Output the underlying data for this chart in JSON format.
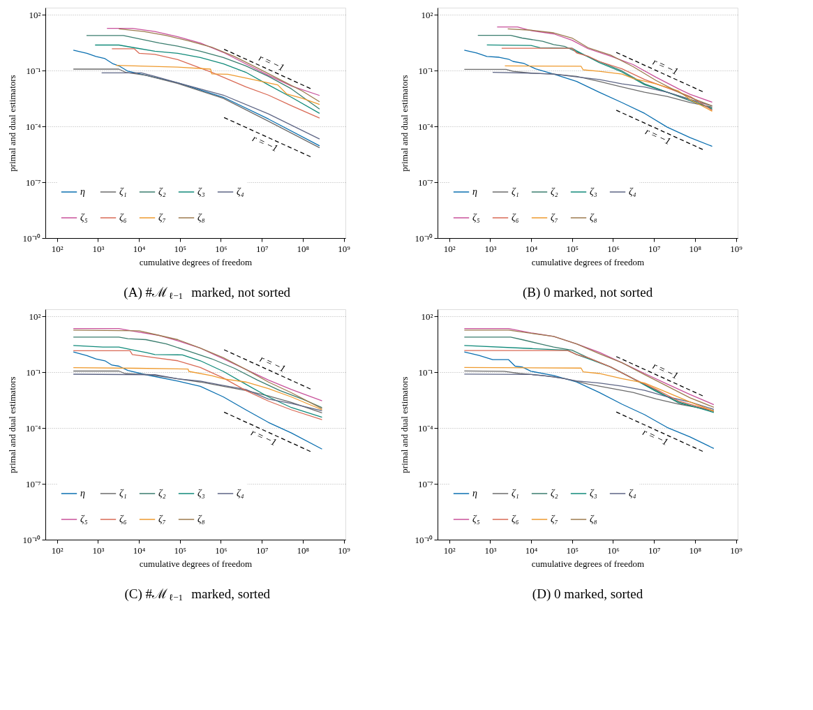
{
  "chart_data": [
    {
      "type": "line",
      "title": "(A) #ℳ$_{ℓ−1}$ marked, not sorted",
      "xlabel": "cumulative degrees of freedom",
      "ylabel": "primal and dual estimators",
      "log": "xy",
      "grid": "y",
      "legend": "bottom left",
      "line_style": "solid",
      "xlim": [
        52,
        1100000000.0
      ],
      "ylim": [
        1e-10,
        240
      ],
      "xticks": [
        {
          "value": 100,
          "label": "10²"
        },
        {
          "value": 1000,
          "label": "10³"
        },
        {
          "value": 10000,
          "label": "10⁴"
        },
        {
          "value": 100000,
          "label": "10⁵"
        },
        {
          "value": 1000000,
          "label": "10⁶"
        },
        {
          "value": 10000000,
          "label": "10⁷"
        },
        {
          "value": 100000000,
          "label": "10⁸"
        },
        {
          "value": 1000000000,
          "label": "10⁹"
        }
      ],
      "yticks": [
        {
          "value": 100,
          "label": "10²"
        },
        {
          "value": 0.1,
          "label": "10⁻¹"
        },
        {
          "value": 0.0001,
          "label": "10⁻⁴"
        },
        {
          "value": 1e-07,
          "label": "10⁻⁷"
        },
        {
          "value": 1e-10,
          "label": "10⁻¹⁰"
        }
      ],
      "series": [
        {
          "name": "η",
          "color": "#0a6fb0",
          "x": [
            251,
            537,
            891,
            1480,
            2340,
            3240,
            5370,
            14800,
            89000,
            1150000,
            14500000,
            257000000
          ],
          "values": [
            1.24,
            0.84,
            0.57,
            0.44,
            0.23,
            0.18,
            0.093,
            0.056,
            0.022,
            0.0037,
            0.00025,
            9.1e-06
          ]
        },
        {
          "name": "ζ₁",
          "color": "#6b6b6b",
          "x": [
            251,
            3240,
            4680,
            14800,
            89000,
            1150000,
            14500000,
            257000000
          ],
          "values": [
            0.12,
            0.12,
            0.081,
            0.056,
            0.02,
            0.0032,
            0.00019,
            7.1e-06
          ]
        },
        {
          "name": "ζ₂",
          "color": "#3a7d6e",
          "x": [
            525,
            4170,
            10200,
            31600,
            89000,
            316000,
            1150000,
            4070000,
            14500000,
            52500000,
            257000000
          ],
          "values": [
            7.6,
            7.6,
            5.1,
            3.05,
            2.07,
            1.09,
            0.5,
            0.18,
            0.049,
            0.0105,
            0.00085
          ]
        },
        {
          "name": "ζ₃",
          "color": "#108a7a",
          "x": [
            851,
            3240,
            8910,
            24500,
            89000,
            316000,
            1150000,
            4070000,
            14500000,
            52500000,
            257000000
          ],
          "values": [
            2.36,
            2.36,
            1.6,
            1.09,
            0.84,
            0.5,
            0.23,
            0.081,
            0.017,
            0.0037,
            0.0005
          ]
        },
        {
          "name": "ζ₄",
          "color": "#5d6585",
          "x": [
            1230,
            11500,
            24500,
            89000,
            1150000,
            14500000,
            257000000
          ],
          "values": [
            0.076,
            0.076,
            0.049,
            0.022,
            0.0048,
            0.00047,
            2.1e-05
          ]
        },
        {
          "name": "ζ₅",
          "color": "#c8509a",
          "x": [
            1660,
            6920,
            24500,
            89000,
            316000,
            1150000,
            4070000,
            14500000,
            52500000,
            257000000
          ],
          "values": [
            18.6,
            18.6,
            12.6,
            6.6,
            3.05,
            0.95,
            0.23,
            0.056,
            0.015,
            0.0046
          ]
        },
        {
          "name": "ζ₆",
          "color": "#d96a55",
          "x": [
            2190,
            7760,
            10200,
            24500,
            89000,
            600000,
            4070000,
            14500000,
            52500000,
            257000000
          ],
          "values": [
            1.48,
            1.48,
            0.84,
            0.74,
            0.39,
            0.081,
            0.0135,
            0.0048,
            0.0013,
            0.00028
          ]
        },
        {
          "name": "ζ₇",
          "color": "#ee9a2e",
          "x": [
            2750,
            89000,
            560000,
            600000,
            1480000,
            6000000,
            24500000,
            40700000,
            98000000,
            257000000
          ],
          "values": [
            0.19,
            0.155,
            0.12,
            0.066,
            0.063,
            0.033,
            0.017,
            0.0055,
            0.0032,
            0.0015
          ]
        },
        {
          "name": "ζ₈",
          "color": "#9c7a4e",
          "x": [
            3240,
            13200,
            46800,
            166000,
            600000,
            2140000,
            7800000,
            27500000,
            98000000,
            257000000
          ],
          "values": [
            17.4,
            12.6,
            7.6,
            3.95,
            1.82,
            0.57,
            0.138,
            0.033,
            0.0079,
            0.0021
          ]
        },
        {
          "type": "line",
          "color": "#000000",
          "line_style": "dashed",
          "x": [
            1200000,
            165000000
          ],
          "values": [
            1.4,
            0.0101
          ]
        },
        {
          "type": "line",
          "color": "#000000",
          "line_style": "dashed",
          "x": [
            1200000,
            165000000
          ],
          "values": [
            0.0003,
            2.2e-06
          ]
        }
      ],
      "annotations": [
        {
          "text": "r = −1",
          "x": 14500000,
          "y": 0.116
        },
        {
          "text": "r = −1",
          "x": 14000000,
          "y": 2.57e-05
        }
      ]
    },
    {
      "type": "line",
      "title": "(B) 0 marked, not sorted",
      "xlabel": "cumulative degrees of freedom",
      "ylabel": "primal and dual estimators",
      "log": "xy",
      "grid": "y",
      "legend": "bottom left",
      "line_style": "solid",
      "xlim": [
        52,
        1100000000.0
      ],
      "ylim": [
        1e-10,
        240
      ],
      "xticks": [
        {
          "value": 100,
          "label": "10²"
        },
        {
          "value": 1000,
          "label": "10³"
        },
        {
          "value": 10000,
          "label": "10⁴"
        },
        {
          "value": 100000,
          "label": "10⁵"
        },
        {
          "value": 1000000,
          "label": "10⁶"
        },
        {
          "value": 10000000,
          "label": "10⁷"
        },
        {
          "value": 100000000,
          "label": "10⁸"
        },
        {
          "value": 1000000000,
          "label": "10⁹"
        }
      ],
      "yticks": [
        {
          "value": 100,
          "label": "10²"
        },
        {
          "value": 0.1,
          "label": "10⁻¹"
        },
        {
          "value": 0.0001,
          "label": "10⁻⁴"
        },
        {
          "value": 1e-07,
          "label": "10⁻⁷"
        },
        {
          "value": 1e-10,
          "label": "10⁻¹⁰"
        }
      ],
      "series": [
        {
          "name": "η",
          "color": "#0a6fb0",
          "x": [
            234,
            468,
            832,
            1660,
            2820,
            3630,
            6760,
            12900,
            35500,
            129000,
            460000,
            1660000,
            5900000,
            21000000,
            76000000,
            263000000
          ],
          "values": [
            1.25,
            0.89,
            0.57,
            0.52,
            0.41,
            0.31,
            0.24,
            0.124,
            0.065,
            0.026,
            0.0069,
            0.0019,
            0.0005,
            9.1e-05,
            2.5e-05,
            8.5e-06
          ]
        },
        {
          "name": "ζ₁",
          "color": "#6b6b6b",
          "x": [
            234,
            2450,
            3630,
            10000,
            35500,
            129000,
            460000,
            1660000,
            5900000,
            21000000,
            76000000,
            263000000
          ],
          "values": [
            0.117,
            0.117,
            0.091,
            0.073,
            0.065,
            0.049,
            0.026,
            0.0132,
            0.0069,
            0.0041,
            0.0019,
            0.0011
          ]
        },
        {
          "name": "ζ₂",
          "color": "#3a7d6e",
          "x": [
            501,
            3160,
            6030,
            19100,
            35500,
            68000,
            129000,
            460000,
            1660000,
            5900000,
            21000000,
            76000000,
            263000000
          ],
          "values": [
            7.8,
            7.8,
            5.6,
            3.76,
            2.5,
            1.95,
            1.01,
            0.31,
            0.095,
            0.0195,
            0.0069,
            0.0024,
            0.00095
          ]
        },
        {
          "name": "ζ₃",
          "color": "#108a7a",
          "x": [
            832,
            10000,
            16600,
            100000,
            129000,
            460000,
            1660000,
            5900000,
            21000000,
            76000000,
            263000000
          ],
          "values": [
            2.4,
            2.24,
            1.7,
            1.58,
            1.15,
            0.27,
            0.083,
            0.0174,
            0.0069,
            0.0028,
            0.00085
          ]
        },
        {
          "name": "ζ₄",
          "color": "#5d6585",
          "x": [
            1150,
            10000,
            35500,
            129000,
            460000,
            1660000,
            5900000,
            21000000,
            76000000,
            263000000
          ],
          "values": [
            0.081,
            0.073,
            0.065,
            0.046,
            0.033,
            0.0195,
            0.0132,
            0.0069,
            0.0028,
            0.00126
          ]
        },
        {
          "name": "ζ₅",
          "color": "#c8509a",
          "x": [
            1480,
            4680,
            10000,
            35500,
            100000,
            245000,
            870000,
            3100000,
            11200000,
            40000000,
            76000000,
            263000000
          ],
          "values": [
            22,
            22,
            14,
            9.4,
            4.3,
            1.5,
            0.6,
            0.21,
            0.044,
            0.0103,
            0.0053,
            0.002
          ]
        },
        {
          "name": "ζ₆",
          "color": "#d96a55",
          "x": [
            1910,
            100000,
            129000,
            245000,
            460000,
            1660000,
            5900000,
            21000000,
            76000000,
            263000000
          ],
          "values": [
            1.58,
            1.58,
            0.89,
            0.6,
            0.31,
            0.124,
            0.033,
            0.0117,
            0.0041,
            0.00074
          ]
        },
        {
          "name": "ζ₇",
          "color": "#ee9a2e",
          "x": [
            2290,
            166000,
            186000,
            460000,
            1660000,
            3100000,
            11200000,
            40000000,
            76000000,
            263000000
          ],
          "values": [
            0.18,
            0.17,
            0.11,
            0.091,
            0.065,
            0.038,
            0.0195,
            0.0079,
            0.0028,
            0.00065
          ]
        },
        {
          "name": "ζ₈",
          "color": "#9c7a4e",
          "x": [
            2690,
            10000,
            35500,
            100000,
            245000,
            870000,
            3100000,
            11200000,
            40000000,
            76000000,
            263000000
          ],
          "values": [
            17.4,
            14.8,
            10.7,
            5.6,
            1.7,
            0.68,
            0.162,
            0.0295,
            0.0069,
            0.0036,
            0.00126
          ]
        },
        {
          "type": "line",
          "color": "#000000",
          "line_style": "dashed",
          "x": [
            1200000,
            165000000
          ],
          "values": [
            0.95,
            0.0069
          ]
        },
        {
          "type": "line",
          "color": "#000000",
          "line_style": "dashed",
          "x": [
            1200000,
            165000000
          ],
          "values": [
            0.00074,
            5.4e-06
          ]
        }
      ],
      "annotations": [
        {
          "text": "r = −1",
          "x": 16000000,
          "y": 0.0713
        },
        {
          "text": "r = −1",
          "x": 14500000,
          "y": 6.12e-05
        }
      ]
    },
    {
      "type": "line",
      "title": "(C) #ℳ$_{ℓ−1}$ marked, sorted",
      "xlabel": "cumulative degrees of freedom",
      "ylabel": "primal and dual estimators",
      "log": "xy",
      "grid": "y",
      "legend": "bottom left",
      "line_style": "solid",
      "xlim": [
        52,
        1100000000.0
      ],
      "ylim": [
        1e-10,
        240
      ],
      "xticks": [
        {
          "value": 100,
          "label": "10²"
        },
        {
          "value": 1000,
          "label": "10³"
        },
        {
          "value": 10000,
          "label": "10⁴"
        },
        {
          "value": 100000,
          "label": "10⁵"
        },
        {
          "value": 1000000,
          "label": "10⁶"
        },
        {
          "value": 10000000,
          "label": "10⁷"
        },
        {
          "value": 100000000,
          "label": "10⁸"
        },
        {
          "value": 1000000000,
          "label": "10⁹"
        }
      ],
      "yticks": [
        {
          "value": 100,
          "label": "10²"
        },
        {
          "value": 0.1,
          "label": "10⁻¹"
        },
        {
          "value": 0.0001,
          "label": "10⁻⁴"
        },
        {
          "value": 1e-07,
          "label": "10⁻⁷"
        },
        {
          "value": 1e-10,
          "label": "10⁻¹⁰"
        }
      ],
      "series": [
        {
          "name": "η",
          "color": "#0a6fb0",
          "x": [
            251,
            537,
            891,
            1480,
            2190,
            3240,
            5370,
            14800,
            89000,
            316000,
            1150000,
            4070000,
            14500000,
            52500000,
            295000000
          ],
          "values": [
            1.21,
            0.78,
            0.52,
            0.41,
            0.24,
            0.21,
            0.124,
            0.073,
            0.033,
            0.0174,
            0.0047,
            0.00095,
            0.0002,
            5.4e-05,
            7.4e-06
          ]
        },
        {
          "name": "ζ₁",
          "color": "#6b6b6b",
          "x": [
            251,
            3240,
            4680,
            19100,
            89000,
            316000,
            1150000,
            4070000,
            14500000,
            52500000,
            295000000
          ],
          "values": [
            0.115,
            0.115,
            0.083,
            0.073,
            0.044,
            0.0295,
            0.0174,
            0.0103,
            0.0053,
            0.0024,
            0.00065
          ]
        },
        {
          "name": "ζ₂",
          "color": "#3a7d6e",
          "x": [
            251,
            3240,
            5370,
            14800,
            46800,
            166000,
            600000,
            2140000,
            7800000,
            27500000,
            98000000,
            295000000
          ],
          "values": [
            7.6,
            7.6,
            6.3,
            5.6,
            3.3,
            1.32,
            0.52,
            0.162,
            0.038,
            0.0103,
            0.0036,
            0.00126
          ]
        },
        {
          "name": "ζ₃",
          "color": "#108a7a",
          "x": [
            251,
            1320,
            3240,
            6920,
            14800,
            24500,
            115000,
            316000,
            1150000,
            4070000,
            14500000,
            52500000,
            295000000
          ],
          "values": [
            2.7,
            2.24,
            2.24,
            1.58,
            1.15,
            0.89,
            0.85,
            0.41,
            0.11,
            0.0224,
            0.0047,
            0.00126,
            0.00038
          ]
        },
        {
          "name": "ζ₄",
          "color": "#5d6585",
          "x": [
            251,
            24500,
            89000,
            316000,
            1150000,
            4070000,
            14500000,
            52500000,
            295000000
          ],
          "values": [
            0.078,
            0.073,
            0.044,
            0.033,
            0.0195,
            0.0117,
            0.0036,
            0.0021,
            0.00085
          ]
        },
        {
          "name": "ζ₅",
          "color": "#c8509a",
          "x": [
            251,
            3240,
            10200,
            31600,
            89000,
            316000,
            1150000,
            4070000,
            14500000,
            52500000,
            295000000
          ],
          "values": [
            21.9,
            21.9,
            14,
            9.4,
            4.9,
            1.95,
            0.52,
            0.141,
            0.038,
            0.0117,
            0.0029
          ]
        },
        {
          "name": "ζ₆",
          "color": "#d96a55",
          "x": [
            251,
            6030,
            6920,
            24500,
            89000,
            316000,
            1150000,
            4070000,
            14500000,
            52500000,
            295000000
          ],
          "values": [
            1.42,
            1.42,
            0.89,
            0.6,
            0.41,
            0.18,
            0.049,
            0.0103,
            0.0028,
            0.00095,
            0.00028
          ]
        },
        {
          "name": "ζ₇",
          "color": "#ee9a2e",
          "x": [
            251,
            8910,
            158000,
            166000,
            600000,
            1150000,
            4070000,
            14500000,
            52500000,
            295000000
          ],
          "values": [
            0.174,
            0.162,
            0.148,
            0.11,
            0.065,
            0.044,
            0.0295,
            0.0132,
            0.0047,
            0.00095
          ]
        },
        {
          "name": "ζ₈",
          "color": "#9c7a4e",
          "x": [
            251,
            10200,
            24500,
            89000,
            316000,
            1150000,
            4070000,
            14500000,
            52500000,
            295000000
          ],
          "values": [
            18.2,
            16.6,
            10.7,
            5.6,
            1.95,
            0.6,
            0.141,
            0.0295,
            0.0079,
            0.0011
          ]
        },
        {
          "type": "line",
          "color": "#000000",
          "line_style": "dashed",
          "x": [
            1200000,
            165000000
          ],
          "values": [
            1.6,
            0.0116
          ]
        },
        {
          "type": "line",
          "color": "#000000",
          "line_style": "dashed",
          "x": [
            1200000,
            165000000
          ],
          "values": [
            0.00071,
            5.1e-06
          ]
        }
      ],
      "annotations": [
        {
          "text": "r = −1",
          "x": 15500000,
          "y": 0.124
        },
        {
          "text": "r = −1",
          "x": 13000000,
          "y": 6.55e-05
        }
      ]
    },
    {
      "type": "line",
      "title": "(D) 0 marked, sorted",
      "xlabel": "cumulative degrees of freedom",
      "ylabel": "primal and dual estimators",
      "log": "xy",
      "grid": "y",
      "legend": "bottom left",
      "line_style": "solid",
      "xlim": [
        52,
        1100000000.0
      ],
      "ylim": [
        1e-10,
        240
      ],
      "xticks": [
        {
          "value": 100,
          "label": "10²"
        },
        {
          "value": 1000,
          "label": "10³"
        },
        {
          "value": 10000,
          "label": "10⁴"
        },
        {
          "value": 100000,
          "label": "10⁵"
        },
        {
          "value": 1000000,
          "label": "10⁶"
        },
        {
          "value": 10000000,
          "label": "10⁷"
        },
        {
          "value": 100000000,
          "label": "10⁸"
        },
        {
          "value": 1000000000,
          "label": "10⁹"
        }
      ],
      "yticks": [
        {
          "value": 100,
          "label": "10²"
        },
        {
          "value": 0.1,
          "label": "10⁻¹"
        },
        {
          "value": 0.0001,
          "label": "10⁻⁴"
        },
        {
          "value": 1e-07,
          "label": "10⁻⁷"
        },
        {
          "value": 1e-10,
          "label": "10⁻¹⁰"
        }
      ],
      "series": [
        {
          "name": "η",
          "color": "#0a6fb0",
          "x": [
            234,
            537,
            1150,
            2820,
            4070,
            6030,
            10000,
            35500,
            129000,
            460000,
            1660000,
            5900000,
            21000000,
            76000000,
            288000000
          ],
          "values": [
            1.23,
            0.79,
            0.47,
            0.47,
            0.21,
            0.19,
            0.112,
            0.066,
            0.03,
            0.0081,
            0.0019,
            0.00052,
            0.000107,
            3.3e-05,
            7.9e-06
          ]
        },
        {
          "name": "ζ₁",
          "color": "#6b6b6b",
          "x": [
            234,
            2190,
            5250,
            19100,
            68000,
            245000,
            870000,
            3100000,
            11200000,
            40000000,
            288000000
          ],
          "values": [
            0.117,
            0.112,
            0.085,
            0.066,
            0.045,
            0.023,
            0.0138,
            0.0081,
            0.0037,
            0.0019,
            0.00087
          ]
        },
        {
          "name": "ζ₂",
          "color": "#3a7d6e",
          "x": [
            234,
            3160,
            6030,
            16600,
            35500,
            100000,
            245000,
            870000,
            3100000,
            11200000,
            40000000,
            288000000
          ],
          "values": [
            7.7,
            7.7,
            5.6,
            3.3,
            2.24,
            1.51,
            0.6,
            0.19,
            0.045,
            0.0105,
            0.0022,
            0.00078
          ]
        },
        {
          "name": "ζ₃",
          "color": "#108a7a",
          "x": [
            234,
            10000,
            78000,
            129000,
            245000,
            870000,
            3100000,
            11200000,
            40000000,
            288000000
          ],
          "values": [
            2.7,
            1.86,
            1.51,
            0.89,
            0.54,
            0.19,
            0.045,
            0.0093,
            0.0025,
            0.00068
          ]
        },
        {
          "name": "ζ₄",
          "color": "#5d6585",
          "x": [
            234,
            10000,
            35500,
            129000,
            460000,
            1660000,
            5900000,
            21000000,
            76000000,
            288000000
          ],
          "values": [
            0.079,
            0.075,
            0.057,
            0.034,
            0.026,
            0.0178,
            0.0105,
            0.0048,
            0.0025,
            0.001
          ]
        },
        {
          "name": "ζ₅",
          "color": "#c8509a",
          "x": [
            234,
            2820,
            10000,
            35500,
            129000,
            460000,
            1660000,
            5900000,
            21000000,
            76000000,
            288000000
          ],
          "values": [
            21.9,
            21.9,
            12.9,
            8.3,
            3.3,
            1.17,
            0.32,
            0.085,
            0.023,
            0.0063,
            0.0018
          ]
        },
        {
          "name": "ζ₆",
          "color": "#d96a55",
          "x": [
            234,
            78000,
            129000,
            245000,
            870000,
            3100000,
            11200000,
            40000000,
            288000000
          ],
          "values": [
            1.45,
            1.45,
            0.89,
            0.6,
            0.19,
            0.045,
            0.012,
            0.0028,
            0.00081
          ]
        },
        {
          "name": "ζ₇",
          "color": "#ee9a2e",
          "x": [
            234,
            166000,
            186000,
            460000,
            1660000,
            5900000,
            21000000,
            76000000,
            288000000
          ],
          "values": [
            0.178,
            0.166,
            0.105,
            0.085,
            0.045,
            0.026,
            0.0081,
            0.0025,
            0.00081
          ]
        },
        {
          "name": "ζ₈",
          "color": "#9c7a4e",
          "x": [
            234,
            2820,
            10000,
            35500,
            129000,
            460000,
            1660000,
            5900000,
            21000000,
            76000000,
            288000000
          ],
          "values": [
            18.2,
            18.2,
            12.3,
            8.3,
            3.3,
            0.98,
            0.32,
            0.074,
            0.0178,
            0.0042,
            0.0013
          ]
        },
        {
          "type": "line",
          "color": "#000000",
          "line_style": "dashed",
          "x": [
            1200000,
            165000000
          ],
          "values": [
            0.69,
            0.005
          ]
        },
        {
          "type": "line",
          "color": "#000000",
          "line_style": "dashed",
          "x": [
            1200000,
            165000000
          ],
          "values": [
            0.00072,
            5.2e-06
          ]
        }
      ],
      "annotations": [
        {
          "text": "r = −1",
          "x": 16000000,
          "y": 0.0518
        },
        {
          "text": "r = −1",
          "x": 12600000,
          "y": 6.86e-05
        }
      ]
    }
  ]
}
